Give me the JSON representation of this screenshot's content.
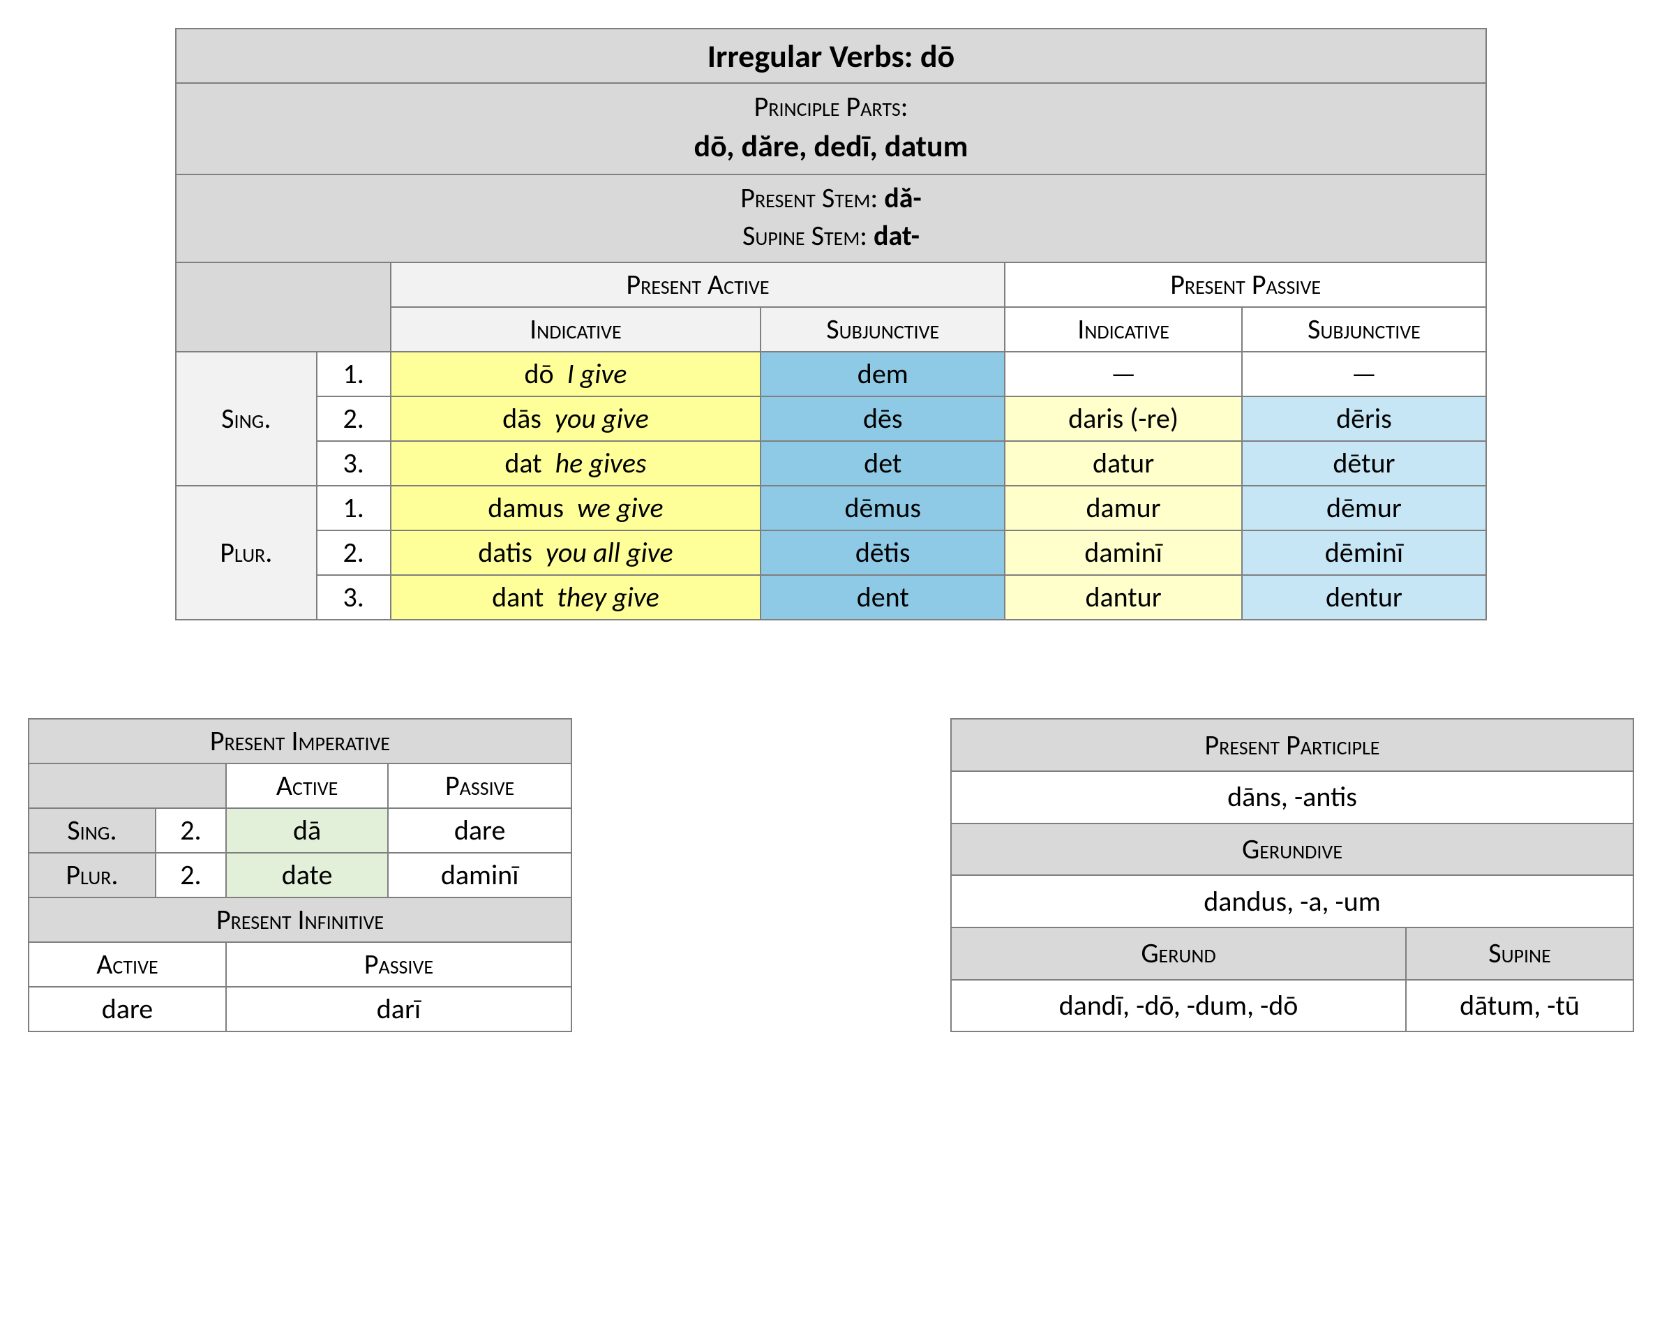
{
  "colors": {
    "border": "#7f7f7f",
    "header_gray": "#d9d9d9",
    "header_light": "#f2f2f2",
    "white": "#ffffff",
    "yellow": "#ffff99",
    "light_yellow": "#ffffcc",
    "blue": "#8ecae6",
    "light_blue": "#c6e6f5",
    "green": "#e2f0d9",
    "text": "#000000"
  },
  "typography": {
    "font_family": "Calibri",
    "title_size_pt": 23,
    "body_size_pt": 20,
    "small_caps_labels": true
  },
  "main": {
    "title": "Irregular Verbs: dō",
    "principle_parts": {
      "label": "Principle Parts:",
      "forms": "dō, dăre, dedī, datum"
    },
    "stems": {
      "present": {
        "label": "Present Stem: ",
        "value": "dă-"
      },
      "supine": {
        "label": "Supine Stem: ",
        "value": "dat-"
      }
    },
    "col_headers": {
      "present_active": "Present Active",
      "present_passive": "Present Passive",
      "indicative": "Indicative",
      "subjunctive": "Subjunctive"
    },
    "row_labels": {
      "sing": "Sing.",
      "plur": "Plur."
    },
    "persons": [
      "1.",
      "2.",
      "3."
    ],
    "rows": [
      {
        "ia_latin": "dō",
        "ia_gloss": "I give",
        "sa": "dem",
        "ip": "—",
        "sp": "—"
      },
      {
        "ia_latin": "dās",
        "ia_gloss": "you give",
        "sa": "dēs",
        "ip": "daris (-re)",
        "sp": "dēris"
      },
      {
        "ia_latin": "dat",
        "ia_gloss": "he gives",
        "sa": "det",
        "ip": "datur",
        "sp": "dētur"
      },
      {
        "ia_latin": "damus",
        "ia_gloss": "we give",
        "sa": "dēmus",
        "ip": "damur",
        "sp": "dēmur"
      },
      {
        "ia_latin": "datis",
        "ia_gloss": "you all give",
        "sa": "dētis",
        "ip": "daminī",
        "sp": "dēminī"
      },
      {
        "ia_latin": "dant",
        "ia_gloss": "they give",
        "sa": "dent",
        "ip": "dantur",
        "sp": "dentur"
      }
    ]
  },
  "imperative": {
    "title": "Present Imperative",
    "sub": {
      "active": "Active",
      "passive": "Passive"
    },
    "row_labels": {
      "sing": "Sing.",
      "plur": "Plur."
    },
    "person": "2.",
    "sing": {
      "active": "dā",
      "passive": "dare"
    },
    "plur": {
      "active": "date",
      "passive": "daminī"
    }
  },
  "infinitive": {
    "title": "Present Infinitive",
    "sub": {
      "active": "Active",
      "passive": "Passive"
    },
    "active": "dare",
    "passive": "darī"
  },
  "participle": {
    "present_label": "Present Participle",
    "present_value": "dāns, -antis",
    "gerundive_label": "Gerundive",
    "gerundive_value": "dandus, -a, -um",
    "gerund_label": "Gerund",
    "supine_label": "Supine",
    "gerund_value": "dandī, -dō, -dum, -dō",
    "supine_value": "dātum, -tū"
  }
}
